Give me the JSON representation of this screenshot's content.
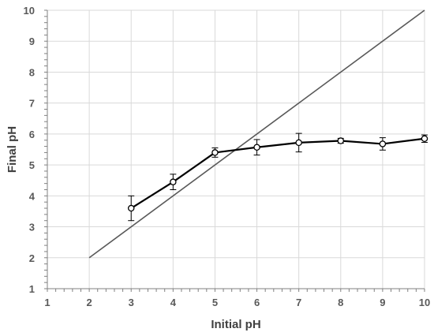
{
  "chart_data": {
    "type": "line",
    "xlabel": "Initial pH",
    "ylabel": "Final pH",
    "xlim": [
      1,
      10
    ],
    "ylim": [
      1,
      10
    ],
    "x_ticks": [
      "1",
      "2",
      "3",
      "4",
      "5",
      "6",
      "7",
      "8",
      "9",
      "10"
    ],
    "y_ticks": [
      "1",
      "2",
      "3",
      "4",
      "5",
      "6",
      "7",
      "8",
      "9",
      "10"
    ],
    "grid": true,
    "series": [
      {
        "x": [
          3,
          4,
          5,
          6,
          7,
          8,
          9,
          10
        ],
        "y": [
          3.6,
          4.45,
          5.4,
          5.57,
          5.72,
          5.78,
          5.68,
          5.85
        ],
        "error": [
          0.4,
          0.25,
          0.15,
          0.25,
          0.3,
          0.08,
          0.2,
          0.12
        ],
        "marker": "open-circle",
        "color": "#000000"
      },
      {
        "x": [
          2,
          10
        ],
        "y": [
          2,
          10
        ],
        "marker": "none",
        "color": "#595959"
      }
    ],
    "colors": {
      "grid": "#d9d9d9",
      "axis": "#808080",
      "text": "#595959"
    }
  }
}
